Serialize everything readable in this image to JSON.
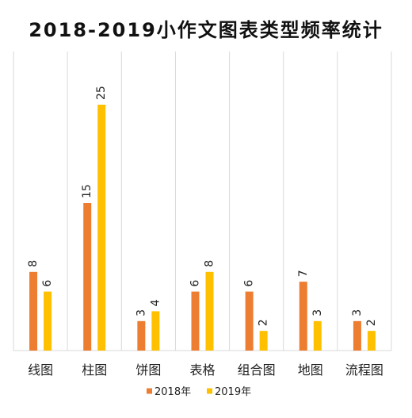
{
  "chart_data": {
    "type": "bar",
    "title": "2018-2019小作文图表类型频率统计",
    "categories": [
      "线图",
      "柱图",
      "饼图",
      "表格",
      "组合图",
      "地图",
      "流程图"
    ],
    "series": [
      {
        "name": "2018年",
        "color": "#ED7D31",
        "values": [
          8,
          15,
          3,
          6,
          6,
          7,
          3
        ]
      },
      {
        "name": "2019年",
        "color": "#FFC000",
        "values": [
          6,
          25,
          4,
          8,
          2,
          3,
          2
        ]
      }
    ],
    "ylim": [
      0,
      25
    ],
    "grid": "vertical category separators",
    "legend": "bottom",
    "data_labels": "rotated, above bars"
  }
}
